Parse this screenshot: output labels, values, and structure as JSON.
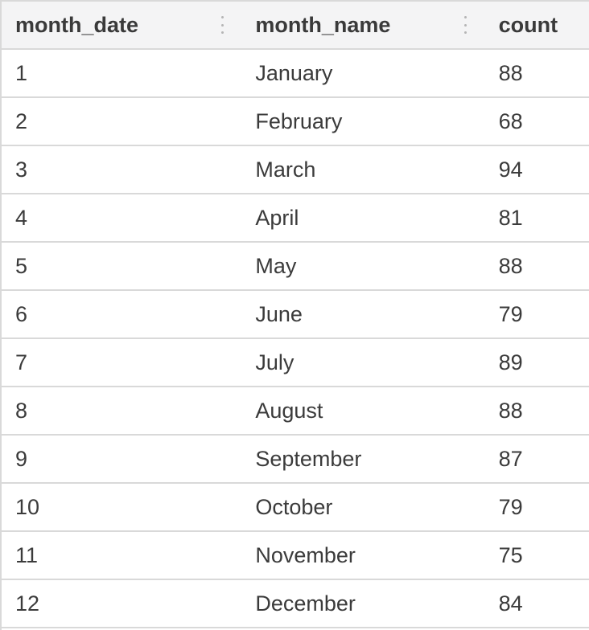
{
  "table": {
    "columns": [
      {
        "key": "month_date",
        "label": "month_date"
      },
      {
        "key": "month_name",
        "label": "month_name"
      },
      {
        "key": "count",
        "label": "count"
      }
    ],
    "rows": [
      {
        "month_date": "1",
        "month_name": "January",
        "count": "88"
      },
      {
        "month_date": "2",
        "month_name": "February",
        "count": "68"
      },
      {
        "month_date": "3",
        "month_name": "March",
        "count": "94"
      },
      {
        "month_date": "4",
        "month_name": "April",
        "count": "81"
      },
      {
        "month_date": "5",
        "month_name": "May",
        "count": "88"
      },
      {
        "month_date": "6",
        "month_name": "June",
        "count": "79"
      },
      {
        "month_date": "7",
        "month_name": "July",
        "count": "89"
      },
      {
        "month_date": "8",
        "month_name": "August",
        "count": "88"
      },
      {
        "month_date": "9",
        "month_name": "September",
        "count": "87"
      },
      {
        "month_date": "10",
        "month_name": "October",
        "count": "79"
      },
      {
        "month_date": "11",
        "month_name": "November",
        "count": "75"
      },
      {
        "month_date": "12",
        "month_name": "December",
        "count": "84"
      }
    ],
    "icons": {
      "column_resize": "column-resize-handle-icon"
    }
  }
}
